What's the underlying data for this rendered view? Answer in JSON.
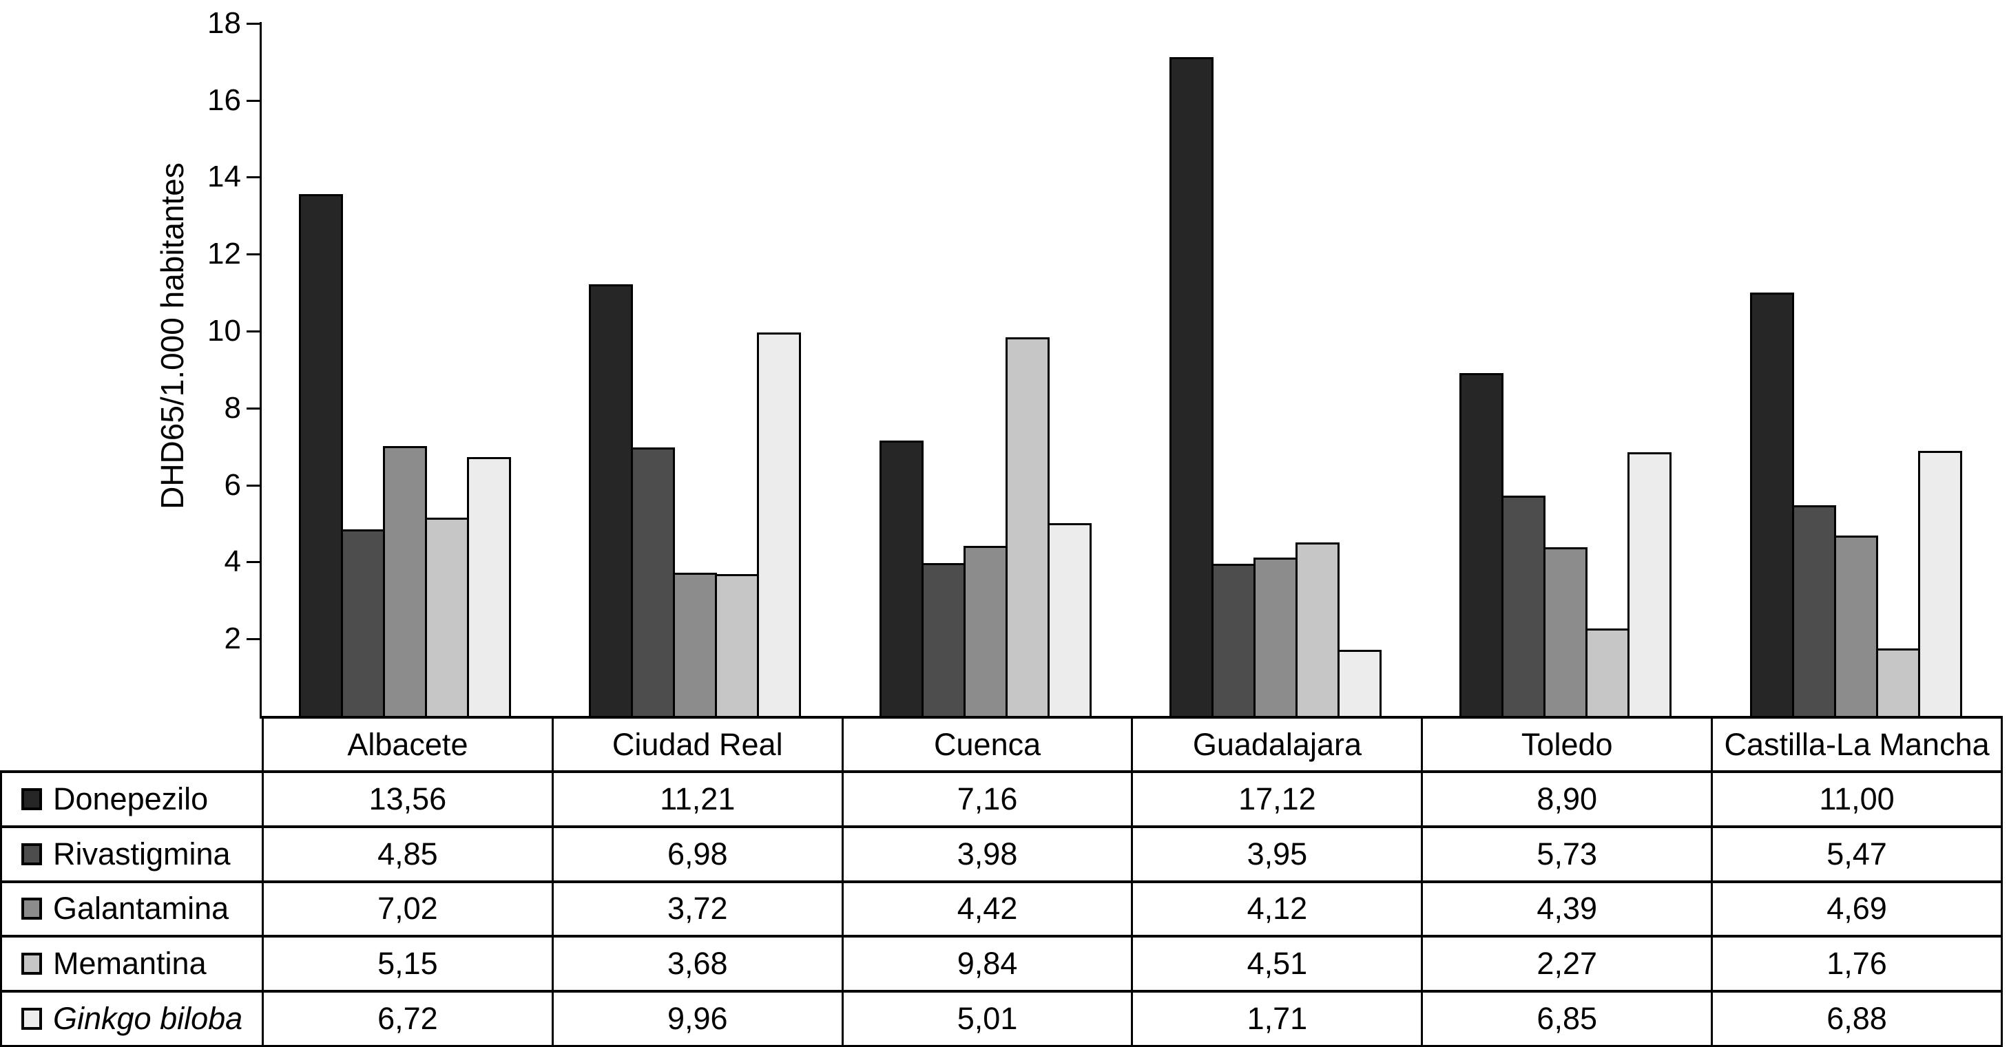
{
  "chart_data": {
    "type": "bar",
    "title": "",
    "xlabel": "",
    "ylabel": "DHD65/1.000 habitantes",
    "ylim": [
      0,
      18
    ],
    "yticks": [
      2,
      4,
      6,
      8,
      10,
      12,
      14,
      16,
      18
    ],
    "grid": false,
    "legend_position": "table-rows-left",
    "axis_color": "#000000",
    "bar_border_color": "#000000",
    "background_color": "#ffffff",
    "categories": [
      "Albacete",
      "Ciudad Real",
      "Cuenca",
      "Guadalajara",
      "Toledo",
      "Castilla-La Mancha"
    ],
    "series": [
      {
        "name": "Donepezilo",
        "italic": false,
        "color": "#262626",
        "values": [
          13.56,
          11.21,
          7.16,
          17.12,
          8.9,
          11.0
        ],
        "display": [
          "13,56",
          "11,21",
          "7,16",
          "17,12",
          "8,90",
          "11,00"
        ]
      },
      {
        "name": "Rivastigmina",
        "italic": false,
        "color": "#4d4d4d",
        "values": [
          4.85,
          6.98,
          3.98,
          3.95,
          5.73,
          5.47
        ],
        "display": [
          "4,85",
          "6,98",
          "3,98",
          "3,95",
          "5,73",
          "5,47"
        ]
      },
      {
        "name": "Galantamina",
        "italic": false,
        "color": "#8c8c8c",
        "values": [
          7.02,
          3.72,
          4.42,
          4.12,
          4.39,
          4.69
        ],
        "display": [
          "7,02",
          "3,72",
          "4,42",
          "4,12",
          "4,39",
          "4,69"
        ]
      },
      {
        "name": "Memantina",
        "italic": false,
        "color": "#c6c6c6",
        "values": [
          5.15,
          3.68,
          9.84,
          4.51,
          2.27,
          1.76
        ],
        "display": [
          "5,15",
          "3,68",
          "9,84",
          "4,51",
          "2,27",
          "1,76"
        ]
      },
      {
        "name": "Ginkgo biloba",
        "italic": true,
        "color": "#ececec",
        "values": [
          6.72,
          9.96,
          5.01,
          1.71,
          6.85,
          6.88
        ],
        "display": [
          "6,72",
          "9,96",
          "5,01",
          "1,71",
          "6,85",
          "6,88"
        ]
      }
    ]
  }
}
